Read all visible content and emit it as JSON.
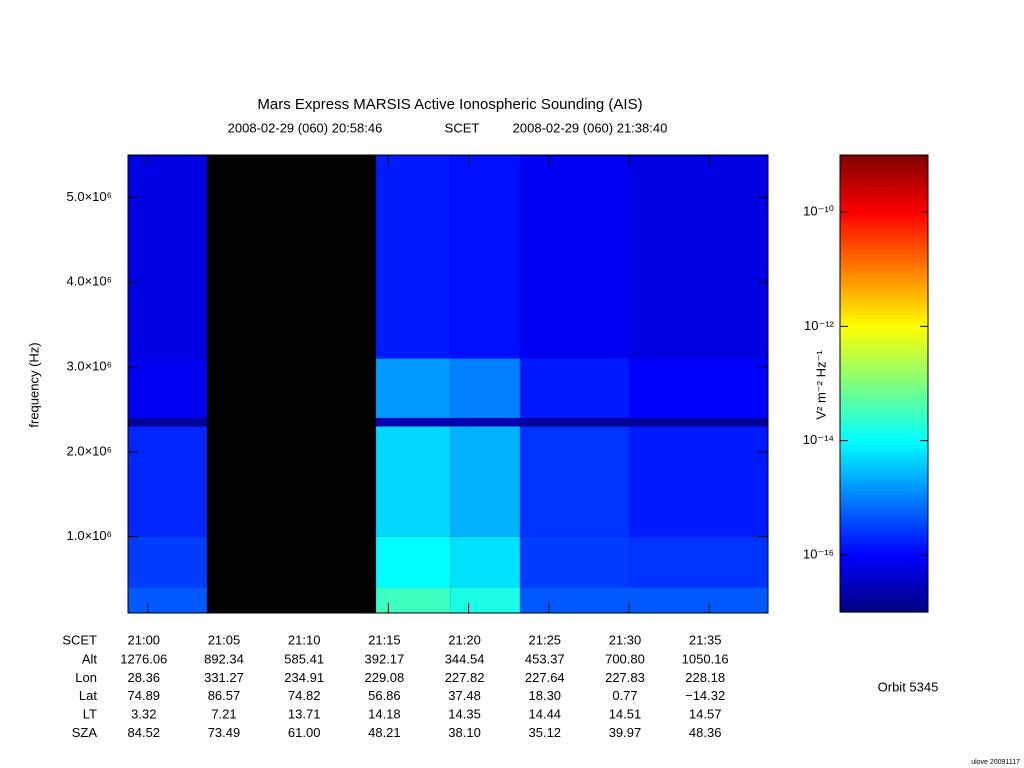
{
  "chart_data": {
    "type": "spectrogram",
    "title": "Mars Express MARSIS Active Ionospheric Sounding (AIS)",
    "start_label": "2008-02-29 (060) 20:58:46",
    "time_label": "SCET",
    "end_label": "2008-02-29 (060) 21:38:40",
    "ylabel": "frequency (Hz)",
    "xlim": [
      "2008-02-29T20:58:46",
      "2008-02-29T21:38:40"
    ],
    "xticks": [
      {
        "value": "2008-02-29T21:00",
        "label": "21:00"
      },
      {
        "value": "2008-02-29T21:05",
        "label": "21:05"
      },
      {
        "value": "2008-02-29T21:10",
        "label": "21:10"
      },
      {
        "value": "2008-02-29T21:15",
        "label": "21:15"
      },
      {
        "value": "2008-02-29T21:20",
        "label": "21:20"
      },
      {
        "value": "2008-02-29T21:25",
        "label": "21:25"
      },
      {
        "value": "2008-02-29T21:30",
        "label": "21:30"
      },
      {
        "value": "2008-02-29T21:35",
        "label": "21:35"
      }
    ],
    "ylim": [
      100000,
      5500000
    ],
    "yticks": [
      {
        "value": 1000000,
        "label": "1.0×10⁶"
      },
      {
        "value": 2000000,
        "label": "2.0×10⁶"
      },
      {
        "value": 3000000,
        "label": "3.0×10⁶"
      },
      {
        "value": 4000000,
        "label": "4.0×10⁶"
      },
      {
        "value": 5000000,
        "label": "5.0×10⁶"
      }
    ],
    "x_bins": [
      "2008-02-29T20:58:46",
      "2008-02-29T21:03:41",
      "2008-02-29T21:14:14",
      "2008-02-29T21:18:51",
      "2008-02-29T21:23:12",
      "2008-02-29T21:30:00",
      "2008-02-29T21:38:40"
    ],
    "y_bins": [
      100000,
      400000,
      1000000,
      2300000,
      2400000,
      3100000,
      5500000
    ],
    "z": [
      [
        5e-16,
        3e-16,
        2e-16,
        1.6e-17,
        8e-17,
        6e-17
      ],
      [
        null,
        null,
        null,
        null,
        null,
        null
      ],
      [
        3e-14,
        1e-14,
        5e-15,
        2.5e-17,
        1.6e-15,
        1.6e-16
      ],
      [
        1.6e-14,
        6e-15,
        2.5e-15,
        2.5e-17,
        1e-15,
        1.3e-16
      ],
      [
        5e-16,
        3e-16,
        2.5e-16,
        1.6e-17,
        1.6e-16,
        8e-17
      ],
      [
        5e-16,
        2.5e-16,
        1.6e-16,
        1.6e-17,
        1e-16,
        6e-17
      ]
    ],
    "colormap": "jet",
    "color_scale": "log",
    "clim": [
      1e-17,
      1e-09
    ],
    "cticks": [
      {
        "value": 1e-10,
        "label": "10⁻¹⁰"
      },
      {
        "value": 1e-12,
        "label": "10⁻¹²"
      },
      {
        "value": 1e-14,
        "label": "10⁻¹⁴"
      },
      {
        "value": 1e-16,
        "label": "10⁻¹⁶"
      }
    ],
    "clabel": "V² m⁻² Hz⁻¹",
    "ephemeris": [
      {
        "label": "Alt",
        "values": [
          "1276.06",
          "892.34",
          "585.41",
          "392.17",
          "344.54",
          "453.37",
          "700.80",
          "1050.16"
        ]
      },
      {
        "label": "Lon",
        "values": [
          "28.36",
          "331.27",
          "234.91",
          "229.08",
          "227.82",
          "227.64",
          "227.83",
          "228.18"
        ]
      },
      {
        "label": "Lat",
        "values": [
          "74.89",
          "86.57",
          "74.82",
          "56.86",
          "37.48",
          "18.30",
          "0.77",
          "−14.32"
        ]
      },
      {
        "label": "LT",
        "values": [
          "3.32",
          "7.21",
          "13.71",
          "14.18",
          "14.35",
          "14.44",
          "14.51",
          "14.57"
        ]
      },
      {
        "label": "SZA",
        "values": [
          "84.52",
          "73.49",
          "61.00",
          "48.21",
          "38.10",
          "35.12",
          "39.97",
          "48.36"
        ]
      }
    ],
    "orbit": "Orbit 5345",
    "credit": "ulove 20091117"
  }
}
